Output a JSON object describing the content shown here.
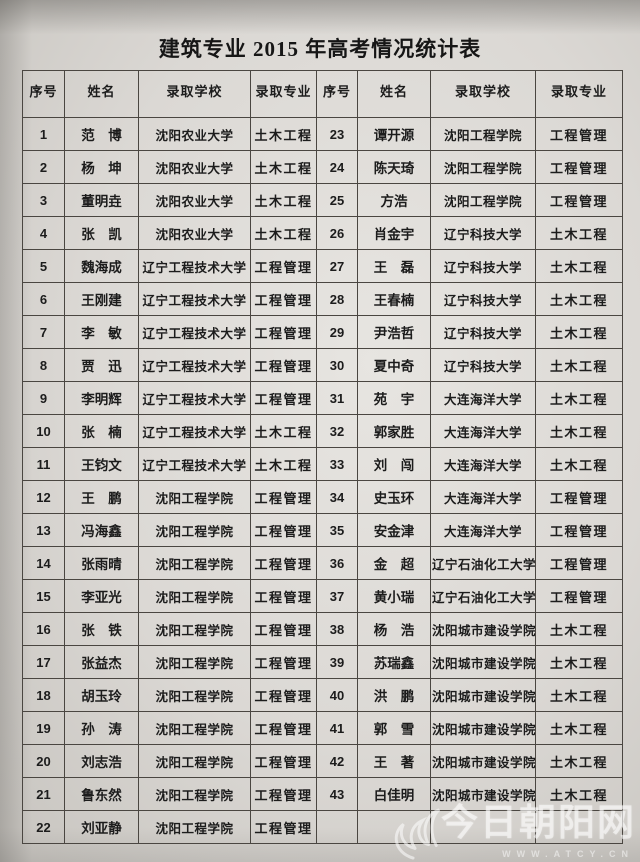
{
  "title": "建筑专业 2015 年高考情况统计表",
  "table": {
    "headers": [
      "序号",
      "姓名",
      "录取学校",
      "录取专业",
      "序号",
      "姓名",
      "录取学校",
      "录取专业"
    ],
    "rows": [
      {
        "left": {
          "no": "1",
          "name": "范　博",
          "school": "沈阳农业大学",
          "major": "土木工程"
        },
        "right": {
          "no": "23",
          "name": "谭开源",
          "school": "沈阳工程学院",
          "major": "工程管理"
        }
      },
      {
        "left": {
          "no": "2",
          "name": "杨　坤",
          "school": "沈阳农业大学",
          "major": "土木工程"
        },
        "right": {
          "no": "24",
          "name": "陈天琦",
          "school": "沈阳工程学院",
          "major": "工程管理"
        }
      },
      {
        "left": {
          "no": "3",
          "name": "董明垚",
          "school": "沈阳农业大学",
          "major": "土木工程"
        },
        "right": {
          "no": "25",
          "name": "方浩",
          "school": "沈阳工程学院",
          "major": "工程管理"
        }
      },
      {
        "left": {
          "no": "4",
          "name": "张　凯",
          "school": "沈阳农业大学",
          "major": "土木工程"
        },
        "right": {
          "no": "26",
          "name": "肖金宇",
          "school": "辽宁科技大学",
          "major": "土木工程"
        }
      },
      {
        "left": {
          "no": "5",
          "name": "魏海成",
          "school": "辽宁工程技术大学",
          "major": "工程管理"
        },
        "right": {
          "no": "27",
          "name": "王　磊",
          "school": "辽宁科技大学",
          "major": "土木工程"
        }
      },
      {
        "left": {
          "no": "6",
          "name": "王刚建",
          "school": "辽宁工程技术大学",
          "major": "工程管理"
        },
        "right": {
          "no": "28",
          "name": "王春楠",
          "school": "辽宁科技大学",
          "major": "土木工程"
        }
      },
      {
        "left": {
          "no": "7",
          "name": "李　敏",
          "school": "辽宁工程技术大学",
          "major": "工程管理"
        },
        "right": {
          "no": "29",
          "name": "尹浩哲",
          "school": "辽宁科技大学",
          "major": "土木工程"
        }
      },
      {
        "left": {
          "no": "8",
          "name": "贾　迅",
          "school": "辽宁工程技术大学",
          "major": "工程管理"
        },
        "right": {
          "no": "30",
          "name": "夏中奇",
          "school": "辽宁科技大学",
          "major": "土木工程"
        }
      },
      {
        "left": {
          "no": "9",
          "name": "李明辉",
          "school": "辽宁工程技术大学",
          "major": "工程管理"
        },
        "right": {
          "no": "31",
          "name": "苑　宇",
          "school": "大连海洋大学",
          "major": "土木工程"
        }
      },
      {
        "left": {
          "no": "10",
          "name": "张　楠",
          "school": "辽宁工程技术大学",
          "major": "土木工程"
        },
        "right": {
          "no": "32",
          "name": "郭家胜",
          "school": "大连海洋大学",
          "major": "土木工程"
        }
      },
      {
        "left": {
          "no": "11",
          "name": "王钧文",
          "school": "辽宁工程技术大学",
          "major": "土木工程"
        },
        "right": {
          "no": "33",
          "name": "刘　闯",
          "school": "大连海洋大学",
          "major": "土木工程"
        }
      },
      {
        "left": {
          "no": "12",
          "name": "王　鹏",
          "school": "沈阳工程学院",
          "major": "工程管理"
        },
        "right": {
          "no": "34",
          "name": "史玉环",
          "school": "大连海洋大学",
          "major": "工程管理"
        }
      },
      {
        "left": {
          "no": "13",
          "name": "冯海鑫",
          "school": "沈阳工程学院",
          "major": "工程管理"
        },
        "right": {
          "no": "35",
          "name": "安金津",
          "school": "大连海洋大学",
          "major": "工程管理"
        }
      },
      {
        "left": {
          "no": "14",
          "name": "张雨晴",
          "school": "沈阳工程学院",
          "major": "工程管理"
        },
        "right": {
          "no": "36",
          "name": "金　超",
          "school": "辽宁石油化工大学",
          "major": "工程管理"
        }
      },
      {
        "left": {
          "no": "15",
          "name": "李亚光",
          "school": "沈阳工程学院",
          "major": "工程管理"
        },
        "right": {
          "no": "37",
          "name": "黄小瑞",
          "school": "辽宁石油化工大学",
          "major": "工程管理"
        }
      },
      {
        "left": {
          "no": "16",
          "name": "张　铁",
          "school": "沈阳工程学院",
          "major": "工程管理"
        },
        "right": {
          "no": "38",
          "name": "杨　浩",
          "school": "沈阳城市建设学院",
          "major": "土木工程"
        }
      },
      {
        "left": {
          "no": "17",
          "name": "张益杰",
          "school": "沈阳工程学院",
          "major": "工程管理"
        },
        "right": {
          "no": "39",
          "name": "苏瑞鑫",
          "school": "沈阳城市建设学院",
          "major": "土木工程"
        }
      },
      {
        "left": {
          "no": "18",
          "name": "胡玉玲",
          "school": "沈阳工程学院",
          "major": "工程管理"
        },
        "right": {
          "no": "40",
          "name": "洪　鹏",
          "school": "沈阳城市建设学院",
          "major": "土木工程"
        }
      },
      {
        "left": {
          "no": "19",
          "name": "孙　涛",
          "school": "沈阳工程学院",
          "major": "工程管理"
        },
        "right": {
          "no": "41",
          "name": "郭　雪",
          "school": "沈阳城市建设学院",
          "major": "土木工程"
        }
      },
      {
        "left": {
          "no": "20",
          "name": "刘志浩",
          "school": "沈阳工程学院",
          "major": "工程管理"
        },
        "right": {
          "no": "42",
          "name": "王　著",
          "school": "沈阳城市建设学院",
          "major": "土木工程"
        }
      },
      {
        "left": {
          "no": "21",
          "name": "鲁东然",
          "school": "沈阳工程学院",
          "major": "工程管理"
        },
        "right": {
          "no": "43",
          "name": "白佳明",
          "school": "沈阳城市建设学院",
          "major": "土木工程"
        }
      },
      {
        "left": {
          "no": "22",
          "name": "刘亚静",
          "school": "沈阳工程学院",
          "major": "工程管理"
        },
        "right": {
          "no": "",
          "name": "",
          "school": "",
          "major": ""
        }
      }
    ]
  },
  "watermark": {
    "site": "今日朝阳网",
    "url": "WWW.ATCY.CN",
    "logo": "phoenix-swirl-icon"
  },
  "colors": {
    "paper": "#dbd8d4",
    "ink": "#1c1c1c",
    "table_border": "#4a4641",
    "watermark": "#ffffff"
  }
}
